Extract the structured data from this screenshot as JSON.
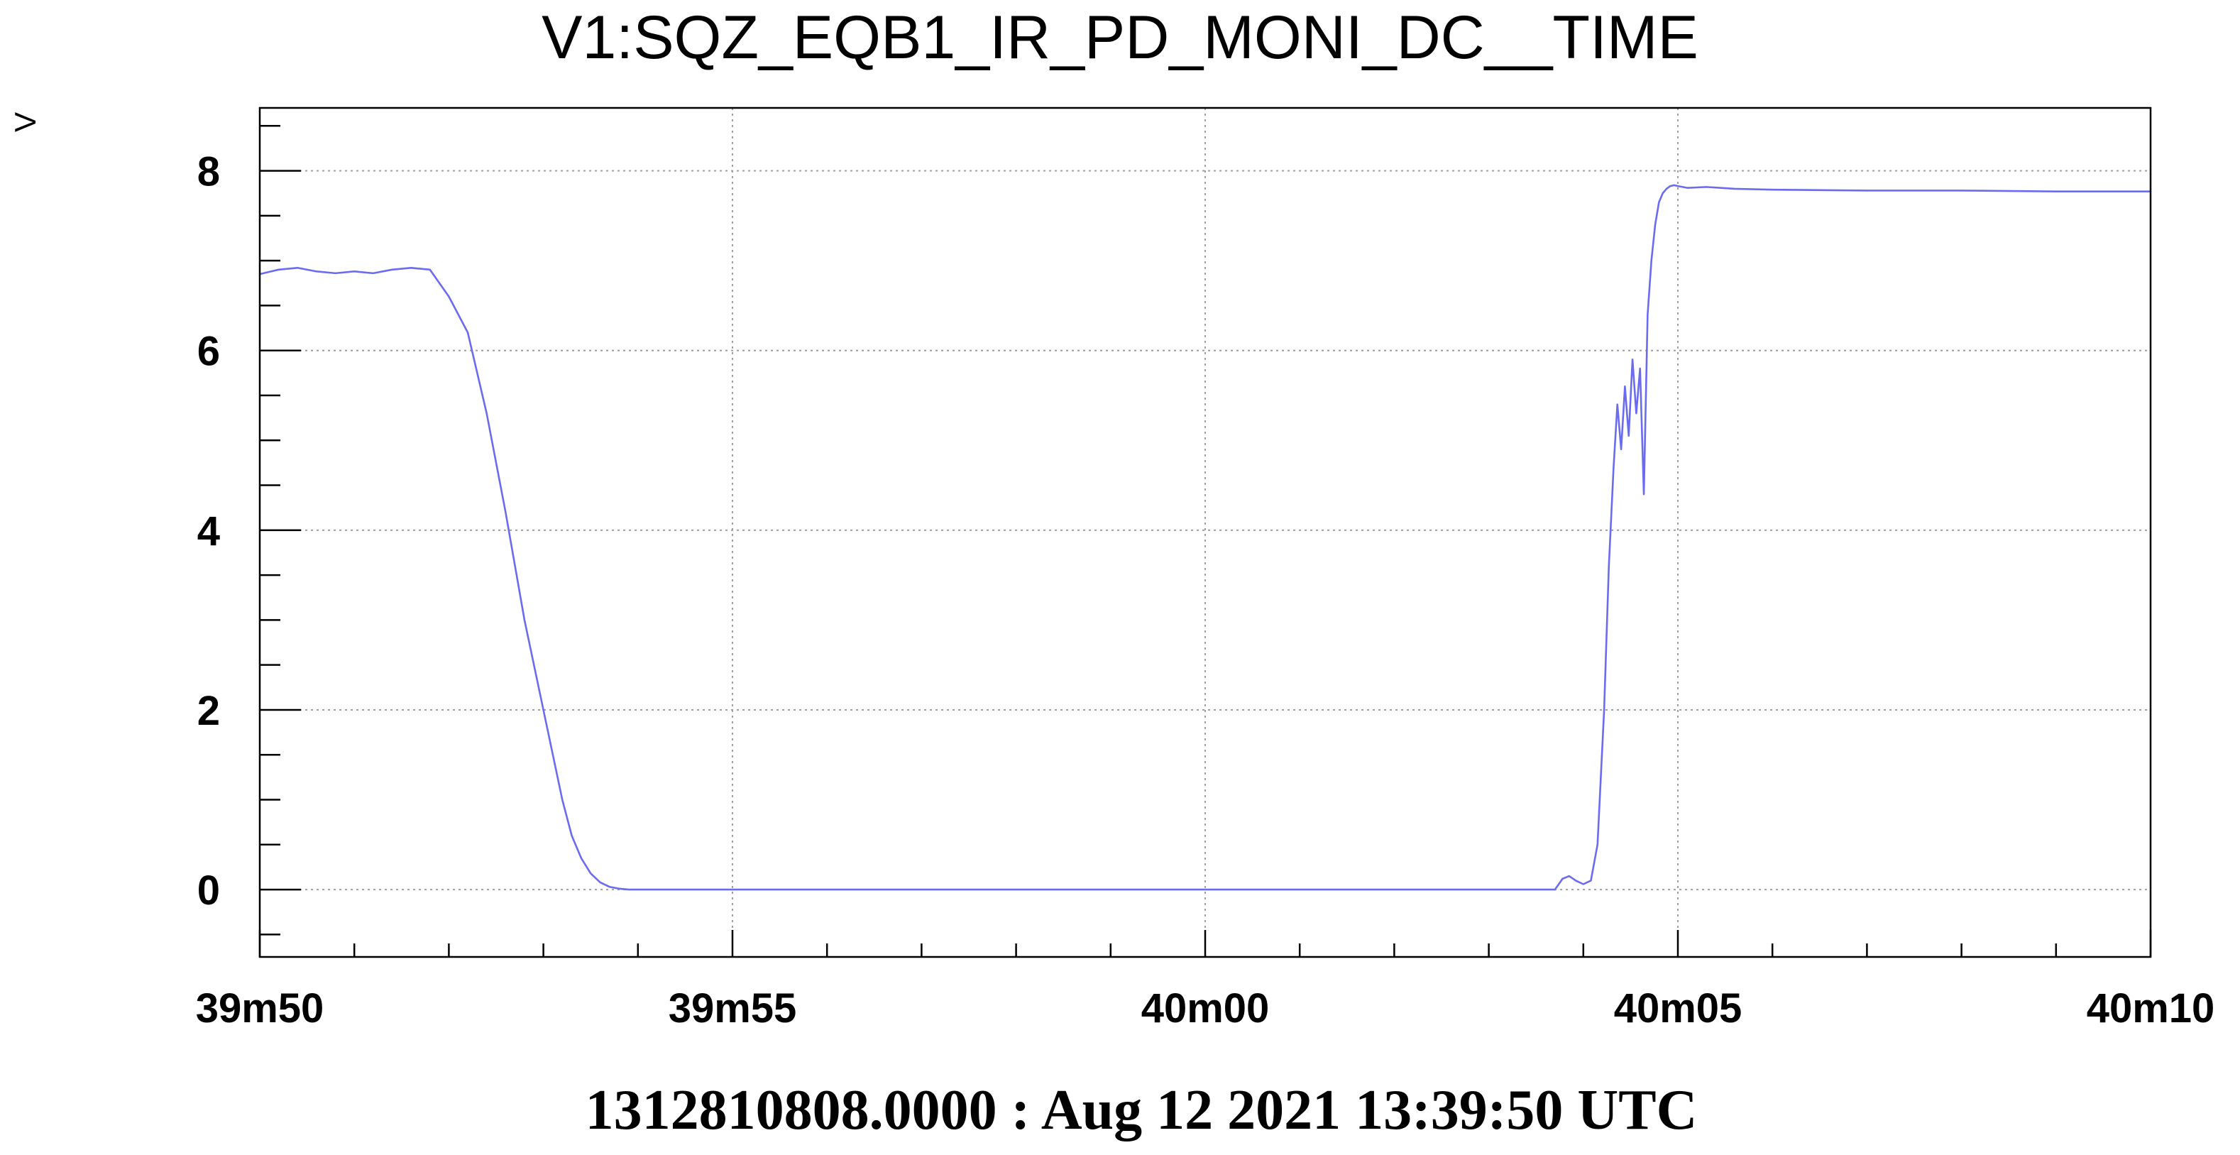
{
  "chart_data": {
    "type": "line",
    "title": "V1:SQZ_EQB1_IR_PD_MONI_DC__TIME",
    "xlabel": "",
    "ylabel": "V",
    "footer": "1312810808.0000 : Aug 12 2021 13:39:50 UTC",
    "xlim": [
      0,
      20
    ],
    "ylim": [
      -0.75,
      8.7
    ],
    "grid": true,
    "legend": "none",
    "x_ticks": [
      {
        "value": 0,
        "label": "39m50"
      },
      {
        "value": 5,
        "label": "39m55"
      },
      {
        "value": 10,
        "label": "40m00"
      },
      {
        "value": 15,
        "label": "40m05"
      },
      {
        "value": 20,
        "label": "40m10"
      }
    ],
    "y_ticks": [
      {
        "value": 0,
        "label": "0"
      },
      {
        "value": 2,
        "label": "2"
      },
      {
        "value": 4,
        "label": "4"
      },
      {
        "value": 6,
        "label": "6"
      },
      {
        "value": 8,
        "label": "8"
      }
    ],
    "series": [
      {
        "color": "#6b6bf0",
        "x": [
          0,
          0.2,
          0.4,
          0.6,
          0.8,
          1.0,
          1.2,
          1.4,
          1.6,
          1.8,
          2.0,
          2.2,
          2.4,
          2.6,
          2.8,
          3.0,
          3.1,
          3.2,
          3.3,
          3.4,
          3.5,
          3.6,
          3.7,
          3.8,
          3.9,
          4.0,
          4.1,
          4.2,
          4.3,
          4.5,
          4.8,
          6.0,
          8.0,
          10.0,
          12.0,
          13.0,
          13.7,
          13.78,
          13.85,
          13.92,
          14.0,
          14.08,
          14.15,
          14.22,
          14.27,
          14.32,
          14.36,
          14.4,
          14.44,
          14.48,
          14.52,
          14.56,
          14.6,
          14.64,
          14.68,
          14.72,
          14.76,
          14.8,
          14.84,
          14.88,
          14.92,
          14.96,
          15.0,
          15.1,
          15.3,
          15.6,
          16.0,
          17.0,
          18.0,
          19.0,
          20.0
        ],
        "y": [
          6.85,
          6.9,
          6.92,
          6.88,
          6.86,
          6.88,
          6.86,
          6.9,
          6.92,
          6.9,
          6.6,
          6.2,
          5.3,
          4.2,
          3.0,
          2.0,
          1.5,
          1.0,
          0.6,
          0.35,
          0.18,
          0.08,
          0.03,
          0.01,
          0.0,
          0.0,
          0.0,
          0.0,
          0.0,
          0.0,
          0.0,
          0.0,
          0.0,
          0.0,
          0.0,
          0.0,
          0.0,
          0.12,
          0.15,
          0.1,
          0.06,
          0.1,
          0.5,
          2.0,
          3.6,
          4.7,
          5.4,
          4.9,
          5.6,
          5.05,
          5.9,
          5.3,
          5.8,
          4.4,
          6.4,
          7.0,
          7.4,
          7.65,
          7.75,
          7.8,
          7.83,
          7.84,
          7.83,
          7.81,
          7.82,
          7.8,
          7.79,
          7.78,
          7.78,
          7.77,
          7.77
        ]
      }
    ]
  }
}
